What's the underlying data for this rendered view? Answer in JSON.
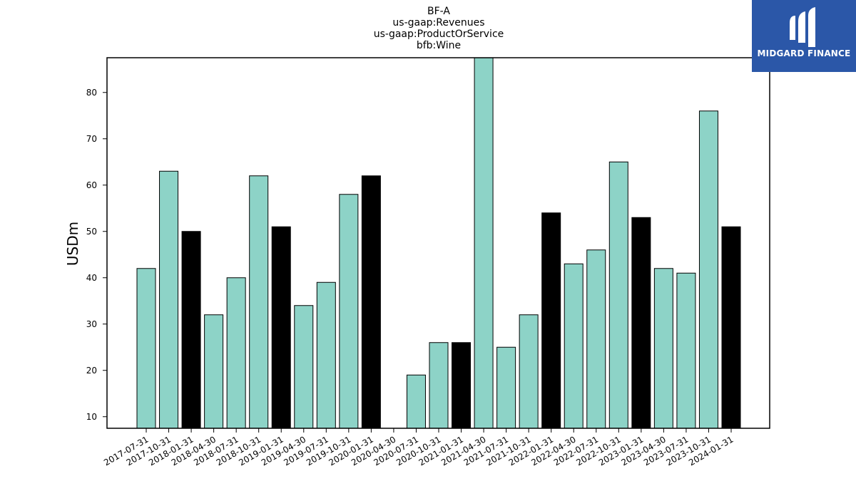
{
  "chart_data": {
    "type": "bar",
    "title_lines": [
      "BF-A",
      "us-gaap:Revenues",
      "us-gaap:ProductOrService",
      "bfb:Wine"
    ],
    "ylabel": "USDm",
    "ylim": [
      7.5,
      87.5
    ],
    "yticks": [
      10,
      20,
      30,
      40,
      50,
      60,
      70,
      80
    ],
    "categories": [
      "2017-07-31",
      "2017-10-31",
      "2018-01-31",
      "2018-04-30",
      "2018-07-31",
      "2018-10-31",
      "2019-01-31",
      "2019-04-30",
      "2019-07-31",
      "2019-10-31",
      "2020-01-31",
      "2020-04-30",
      "2020-07-31",
      "2020-10-31",
      "2021-01-31",
      "2021-04-30",
      "2021-07-31",
      "2021-10-31",
      "2022-01-31",
      "2022-04-30",
      "2022-07-31",
      "2022-10-31",
      "2023-01-31",
      "2023-04-30",
      "2023-07-31",
      "2023-10-31",
      "2024-01-31"
    ],
    "values": [
      42,
      63,
      50,
      32,
      40,
      62,
      51,
      34,
      39,
      58,
      62,
      null,
      19,
      26,
      26,
      88,
      25,
      32,
      54,
      43,
      46,
      65,
      53,
      42,
      41,
      76,
      51
    ],
    "bar_colors": [
      "teal",
      "teal",
      "black",
      "teal",
      "teal",
      "teal",
      "black",
      "teal",
      "teal",
      "teal",
      "black",
      "teal",
      "teal",
      "teal",
      "black",
      "teal",
      "teal",
      "teal",
      "black",
      "teal",
      "teal",
      "teal",
      "black",
      "teal",
      "teal",
      "teal",
      "black"
    ],
    "colors": {
      "teal": "#8dd3c7",
      "black": "#000000",
      "edge": "#000000"
    },
    "grid": false
  },
  "logo": {
    "text": "MIDGARD FINANCE",
    "background": "#2b57a8"
  }
}
